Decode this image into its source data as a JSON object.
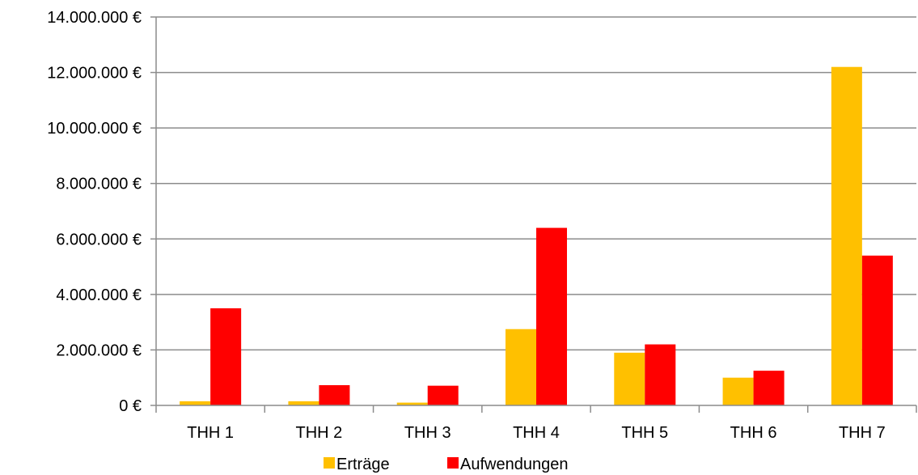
{
  "chart_data": {
    "type": "bar",
    "categories": [
      "THH 1",
      "THH 2",
      "THH 3",
      "THH 4",
      "THH 5",
      "THH 6",
      "THH 7"
    ],
    "series": [
      {
        "name": "Erträge",
        "color": "#FFC000",
        "values": [
          150000,
          150000,
          100000,
          2750000,
          1900000,
          1000000,
          12200000
        ]
      },
      {
        "name": "Aufwendungen",
        "color": "#FF0000",
        "values": [
          3500000,
          730000,
          710000,
          6400000,
          2200000,
          1250000,
          5400000
        ]
      }
    ],
    "ylim": [
      0,
      14000000
    ],
    "yticks": [
      0,
      2000000,
      4000000,
      6000000,
      8000000,
      10000000,
      12000000,
      14000000
    ],
    "ytick_labels": [
      "0 €",
      "2.000.000 €",
      "4.000.000 €",
      "6.000.000 €",
      "8.000.000 €",
      "10.000.000 €",
      "12.000.000 €",
      "14.000.000 €"
    ],
    "grid": true,
    "legend_position": "bottom",
    "title": "",
    "xlabel": "",
    "ylabel": ""
  }
}
